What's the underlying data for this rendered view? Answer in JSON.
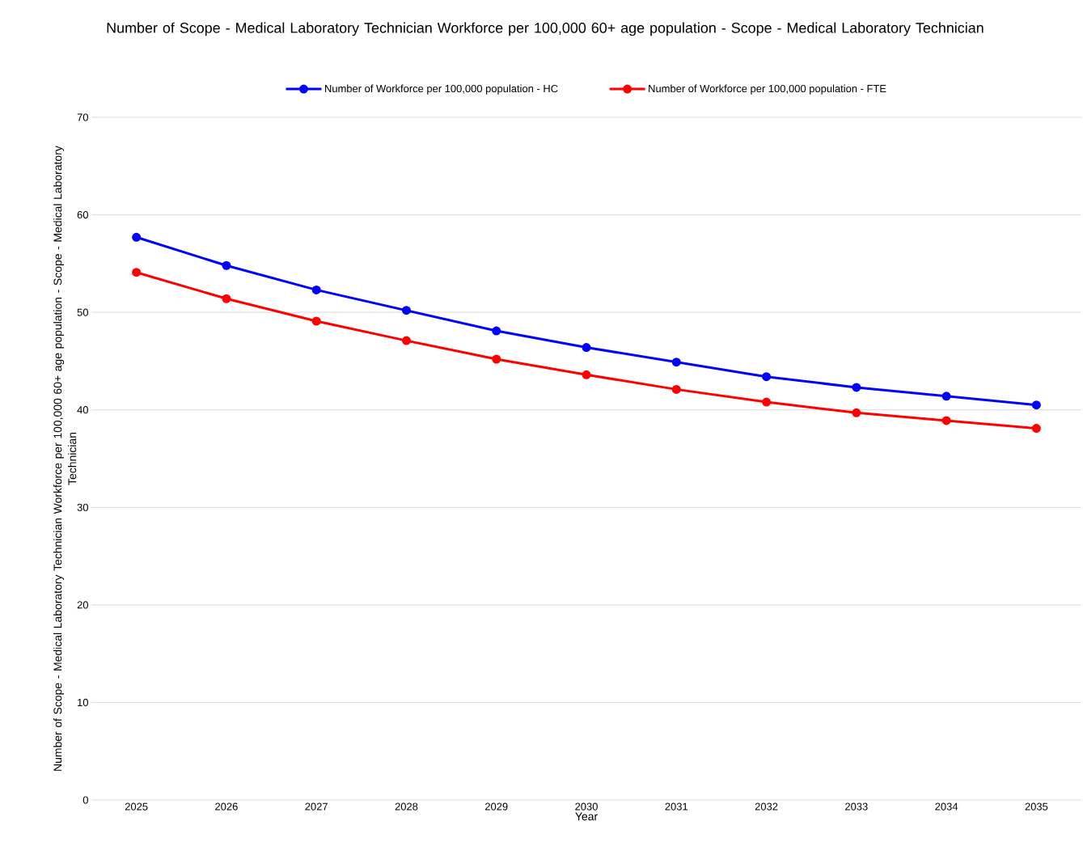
{
  "chart_data": {
    "type": "line",
    "title": "Number of Scope - Medical Laboratory Technician Workforce per 100,000 60+ age population - Scope - Medical Laboratory Technician",
    "xlabel": "Year",
    "ylabel": "Number of Scope - Medical Laboratory Technician Workforce per 100,000 60+ age population - Scope - Medical Laboratory Technician",
    "categories": [
      "2025",
      "2026",
      "2027",
      "2028",
      "2029",
      "2030",
      "2031",
      "2032",
      "2033",
      "2034",
      "2035"
    ],
    "series": [
      {
        "name": "Number of Workforce per 100,000 population - HC",
        "color": "#0000ff",
        "values": [
          57.7,
          54.8,
          52.3,
          50.2,
          48.1,
          46.4,
          44.9,
          43.4,
          42.3,
          41.4,
          40.5
        ]
      },
      {
        "name": "Number of Workforce per 100,000 population - FTE",
        "color": "#ff0000",
        "values": [
          54.1,
          51.4,
          49.1,
          47.1,
          45.2,
          43.6,
          42.1,
          40.8,
          39.7,
          38.9,
          38.1
        ]
      }
    ],
    "ylim": [
      0,
      70
    ],
    "yticks": [
      0,
      10,
      20,
      30,
      40,
      50,
      60,
      70
    ],
    "grid": "y",
    "legend": "top",
    "marker": "circle",
    "line_style": "solid"
  }
}
